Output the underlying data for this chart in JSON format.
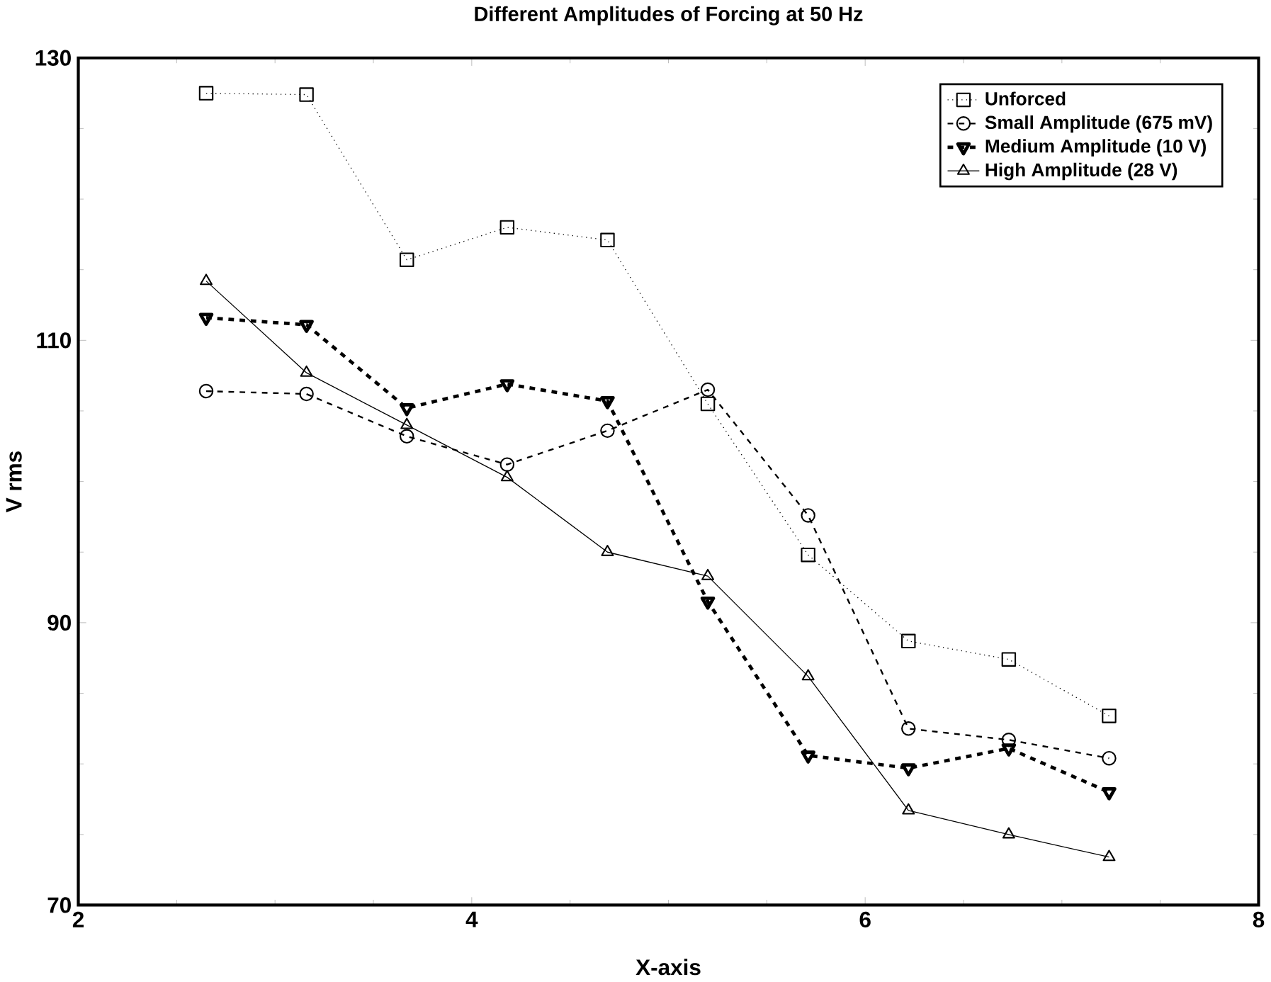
{
  "chart_data": {
    "type": "line",
    "title": "Different Amplitudes of Forcing at 50 Hz",
    "xlabel": "X-axis",
    "ylabel": "V rms",
    "x": [
      2.65,
      3.16,
      3.67,
      4.18,
      4.69,
      5.2,
      5.71,
      6.22,
      6.73,
      7.24
    ],
    "xlim": [
      2,
      8
    ],
    "xticks": [
      2,
      4,
      6,
      8
    ],
    "ylim": [
      70,
      130
    ],
    "yticks": [
      70,
      90,
      110,
      130
    ],
    "grid": false,
    "legend": "top right",
    "series": [
      {
        "name": "Unforced",
        "color": "#000000",
        "marker": "square",
        "line_style": "dotted",
        "values": [
          127.5,
          127.4,
          115.7,
          118.0,
          117.1,
          105.5,
          94.8,
          88.7,
          87.4,
          83.4
        ]
      },
      {
        "name": "Small Amplitude (675 mV)",
        "color": "#000000",
        "marker": "circle",
        "line_style": "dashed",
        "values": [
          106.4,
          106.2,
          103.2,
          101.2,
          103.6,
          106.5,
          97.6,
          82.5,
          81.7,
          80.4
        ]
      },
      {
        "name": "Medium Amplitude (10 V)",
        "color": "#000000",
        "marker": "triangle-down",
        "line_style": "dashed",
        "values": [
          111.6,
          111.1,
          105.2,
          106.9,
          105.7,
          91.5,
          80.6,
          79.7,
          81.1,
          78.0
        ]
      },
      {
        "name": "High Amplitude (28 V)",
        "color": "#000000",
        "marker": "triangle",
        "line_style": "solid",
        "values": [
          114.2,
          107.7,
          104.0,
          100.3,
          95.0,
          93.3,
          86.2,
          76.7,
          75.0,
          73.4
        ]
      }
    ]
  }
}
